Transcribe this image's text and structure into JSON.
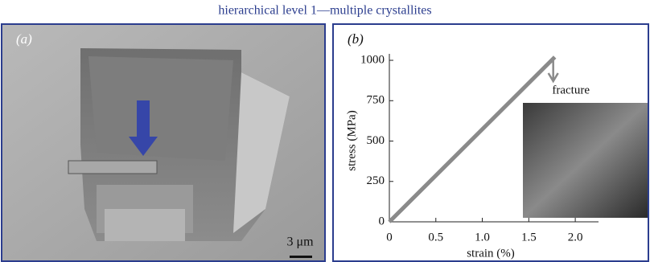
{
  "title": "hierarchical level 1—multiple crystallites",
  "panel_a": {
    "label": "(a)",
    "scale_bar": "3 μm"
  },
  "chart_data": {
    "type": "line",
    "panel_label": "(b)",
    "x_label": "strain (%)",
    "y_label": "stress (MPa)",
    "annotation": "fracture",
    "x": [
      0,
      1.78
    ],
    "values": [
      0,
      1020
    ],
    "color": "#8a8a8a",
    "xlim": [
      0,
      2.25
    ],
    "xticks": [
      0,
      0.5,
      {
        "value": 1,
        "label": "1.0"
      },
      1.5,
      {
        "value": 2,
        "label": "2.0"
      }
    ],
    "ylim": [
      0,
      1040
    ],
    "yticks": [
      0,
      250,
      500,
      750,
      1000
    ]
  }
}
